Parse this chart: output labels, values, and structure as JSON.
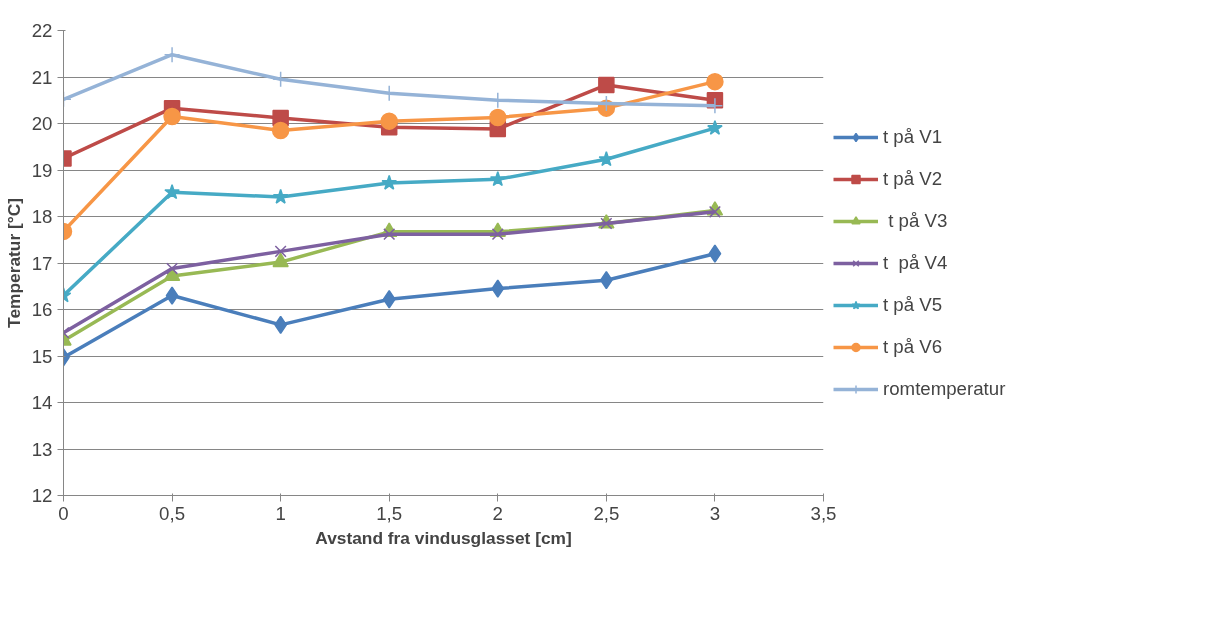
{
  "chart_data": {
    "type": "line",
    "xlabel": "Avstand fra vindusglasset [cm]",
    "ylabel": "Temperatur [°C]",
    "x": [
      0,
      0.5,
      1,
      1.5,
      2,
      2.5,
      3
    ],
    "xlim": [
      0,
      3.5
    ],
    "xticks": [
      {
        "value": 0,
        "label": "0"
      },
      {
        "value": 0.5,
        "label": "0,5"
      },
      {
        "value": 1,
        "label": "1"
      },
      {
        "value": 1.5,
        "label": "1,5"
      },
      {
        "value": 2,
        "label": "2"
      },
      {
        "value": 2.5,
        "label": "2,5"
      },
      {
        "value": 3,
        "label": "3"
      },
      {
        "value": 3.5,
        "label": "3,5"
      }
    ],
    "ylim": [
      12,
      22
    ],
    "yticks": [
      12,
      13,
      14,
      15,
      16,
      17,
      18,
      19,
      20,
      21,
      22
    ],
    "grid": "y",
    "legend": "right",
    "line_style": "solid",
    "series": [
      {
        "name": "t på V1",
        "color": "#4a7ebb",
        "marker": "diamond",
        "values": [
          14.97,
          16.3,
          15.67,
          16.22,
          16.45,
          16.63,
          17.2
        ]
      },
      {
        "name": "t på V2",
        "color": "#be4b48",
        "marker": "square",
        "values": [
          19.25,
          20.33,
          20.12,
          19.92,
          19.88,
          20.83,
          20.5
        ]
      },
      {
        "name": " t på V3",
        "color": "#98b954",
        "marker": "triangle",
        "values": [
          15.33,
          16.72,
          17.02,
          17.67,
          17.67,
          17.85,
          18.13
        ]
      },
      {
        "name": "t  på V4",
        "color": "#7d60a0",
        "marker": "x",
        "values": [
          15.5,
          16.88,
          17.25,
          17.62,
          17.62,
          17.85,
          18.1
        ]
      },
      {
        "name": "t på V5",
        "color": "#46aac5",
        "marker": "star",
        "values": [
          16.3,
          18.52,
          18.42,
          18.72,
          18.8,
          19.23,
          19.9
        ]
      },
      {
        "name": "t på V6",
        "color": "#f79646",
        "marker": "circle",
        "values": [
          17.68,
          20.15,
          19.85,
          20.05,
          20.13,
          20.33,
          20.9
        ]
      },
      {
        "name": "romtemperatur",
        "color": "#95b3d7",
        "marker": "cross",
        "values": [
          20.52,
          21.48,
          20.95,
          20.65,
          20.5,
          20.43,
          20.38
        ]
      }
    ]
  }
}
